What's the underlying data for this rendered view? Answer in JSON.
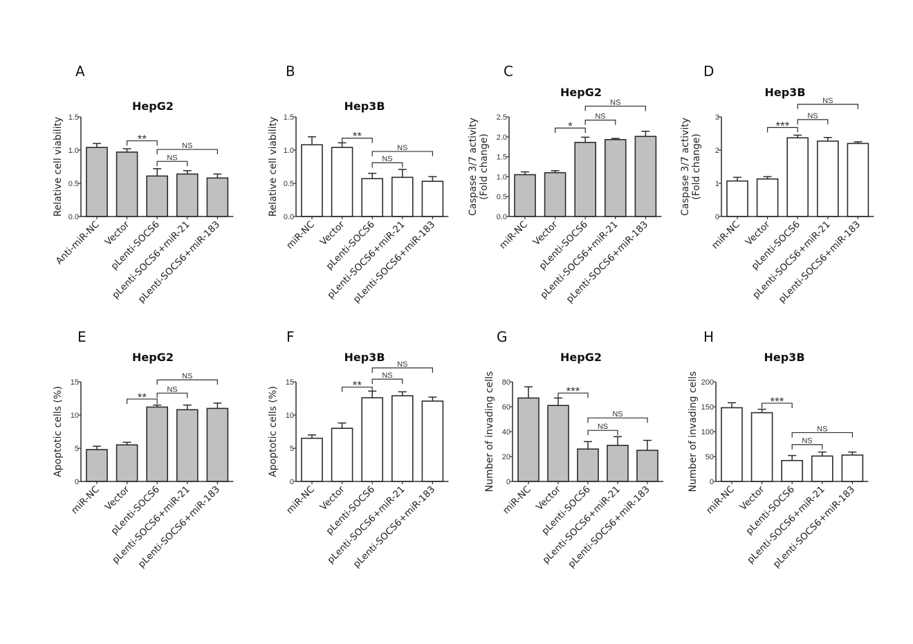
{
  "colors": {
    "gray_bar": "#c0c0c3",
    "white_bar": "#ffffff",
    "stroke": "#2a2a2a"
  },
  "chart_data": [
    {
      "id": "A",
      "type": "bar",
      "panel_label": "A",
      "title": "HepG2",
      "ylabel": "Relative cell viability",
      "ylim": [
        0,
        1.5
      ],
      "yticks": [
        "0.0",
        "0.5",
        "1.0",
        "1.5"
      ],
      "ytick_values": [
        0,
        0.5,
        1.0,
        1.5
      ],
      "categories": [
        "Anti-miR-NC",
        "Vector",
        "pLenti-SOCS6",
        "pLenti-SOCS6+miR-21",
        "pLenti-SOCS6+miR-183"
      ],
      "values": [
        1.04,
        0.97,
        0.61,
        0.64,
        0.58
      ],
      "errors": [
        0.06,
        0.05,
        0.11,
        0.05,
        0.06
      ],
      "fill": "gray",
      "brackets": [
        {
          "from": 1,
          "to": 2,
          "text": "**",
          "level": 1.14
        },
        {
          "from": 2,
          "to": 3,
          "text": "NS",
          "level": 0.83
        },
        {
          "from": 2,
          "to": 4,
          "text": "NS",
          "level": 1.01
        }
      ]
    },
    {
      "id": "B",
      "type": "bar",
      "panel_label": "B",
      "title": "Hep3B",
      "ylabel": "Relative cell viability",
      "ylim": [
        0,
        1.5
      ],
      "yticks": [
        "0.0",
        "0.5",
        "1.0",
        "1.5"
      ],
      "ytick_values": [
        0,
        0.5,
        1.0,
        1.5
      ],
      "categories": [
        "miR-NC",
        "Vector",
        "pLenti-SOCS6",
        "pLenti-SOCS6+miR-21",
        "pLenti-SOCS6+miR-183"
      ],
      "values": [
        1.08,
        1.04,
        0.57,
        0.59,
        0.53
      ],
      "errors": [
        0.12,
        0.07,
        0.08,
        0.12,
        0.07
      ],
      "fill": "white",
      "brackets": [
        {
          "from": 1,
          "to": 2,
          "text": "**",
          "level": 1.18
        },
        {
          "from": 2,
          "to": 3,
          "text": "NS",
          "level": 0.81
        },
        {
          "from": 2,
          "to": 4,
          "text": "NS",
          "level": 0.98
        }
      ]
    },
    {
      "id": "C",
      "type": "bar",
      "panel_label": "C",
      "title": "HepG2",
      "ylabel": "Caspase 3/7 activity",
      "ylabel2": "(Fold change)",
      "ylim": [
        0,
        2.5
      ],
      "yticks": [
        "0.0",
        "0.5",
        "1.0",
        "1.5",
        "2.0",
        "2.5"
      ],
      "ytick_values": [
        0,
        0.5,
        1.0,
        1.5,
        2.0,
        2.5
      ],
      "categories": [
        "miR-NC",
        "Vector",
        "pLenti-SOCS6",
        "pLenti-SOCS6+miR-21",
        "pLenti-SOCS6+miR-183"
      ],
      "values": [
        1.05,
        1.1,
        1.86,
        1.93,
        2.01
      ],
      "errors": [
        0.07,
        0.05,
        0.13,
        0.03,
        0.13
      ],
      "fill": "gray",
      "brackets": [
        {
          "from": 1,
          "to": 2,
          "text": "*",
          "level": 2.22
        },
        {
          "from": 2,
          "to": 3,
          "text": "NS",
          "level": 2.42
        },
        {
          "from": 2,
          "to": 4,
          "text": "NS",
          "level": 2.77
        }
      ]
    },
    {
      "id": "D",
      "type": "bar",
      "panel_label": "D",
      "title": "Hep3B",
      "ylabel": "Caspase 3/7 activity",
      "ylabel2": "(Fold change)",
      "ylim": [
        0,
        3
      ],
      "yticks": [
        "0",
        "1",
        "2",
        "3"
      ],
      "ytick_values": [
        0,
        1,
        2,
        3
      ],
      "categories": [
        "miR-NC",
        "Vector",
        "pLenti-SOCS6",
        "pLenti-SOCS6+miR-21",
        "pLenti-SOCS6+miR-183"
      ],
      "values": [
        1.07,
        1.13,
        2.37,
        2.27,
        2.2
      ],
      "errors": [
        0.11,
        0.07,
        0.08,
        0.11,
        0.05
      ],
      "fill": "white",
      "brackets": [
        {
          "from": 1,
          "to": 2,
          "text": "***",
          "level": 2.68
        },
        {
          "from": 2,
          "to": 3,
          "text": "NS",
          "level": 2.92
        },
        {
          "from": 2,
          "to": 4,
          "text": "NS",
          "level": 3.38
        }
      ]
    },
    {
      "id": "E",
      "type": "bar",
      "panel_label": "E",
      "title": "HepG2",
      "ylabel": "Apoptotic cells (%)",
      "ylim": [
        0,
        15
      ],
      "yticks": [
        "0",
        "5",
        "10",
        "15"
      ],
      "ytick_values": [
        0,
        5,
        10,
        15
      ],
      "categories": [
        "miR-NC",
        "Vector",
        "pLenti-SOCS6",
        "pLenti-SOCS6+miR-21",
        "pLenti-SOCS6+miR-183"
      ],
      "values": [
        4.8,
        5.5,
        11.2,
        10.8,
        11.0
      ],
      "errors": [
        0.5,
        0.4,
        0.3,
        0.7,
        0.8
      ],
      "fill": "gray",
      "brackets": [
        {
          "from": 1,
          "to": 2,
          "text": "**",
          "level": 12.4
        },
        {
          "from": 2,
          "to": 3,
          "text": "NS",
          "level": 13.3
        },
        {
          "from": 2,
          "to": 4,
          "text": "NS",
          "level": 15.3
        }
      ]
    },
    {
      "id": "F",
      "type": "bar",
      "panel_label": "F",
      "title": "Hep3B",
      "ylabel": "Apoptotic cells (%)",
      "ylim": [
        0,
        15
      ],
      "yticks": [
        "0",
        "5",
        "10",
        "15"
      ],
      "ytick_values": [
        0,
        5,
        10,
        15
      ],
      "categories": [
        "miR-NC",
        "Vector",
        "pLenti-SOCS6",
        "pLenti-SOCS6+miR-21",
        "pLenti-SOCS6+miR-183"
      ],
      "values": [
        6.5,
        8.0,
        12.6,
        12.9,
        12.1
      ],
      "errors": [
        0.5,
        0.8,
        1.0,
        0.6,
        0.6
      ],
      "fill": "white",
      "brackets": [
        {
          "from": 1,
          "to": 2,
          "text": "**",
          "level": 14.2
        },
        {
          "from": 2,
          "to": 3,
          "text": "NS",
          "level": 15.4
        },
        {
          "from": 2,
          "to": 4,
          "text": "NS",
          "level": 17.1
        }
      ]
    },
    {
      "id": "G",
      "type": "bar",
      "panel_label": "G",
      "title": "HepG2",
      "ylabel": "Number of invading cells",
      "ylim": [
        0,
        80
      ],
      "yticks": [
        "0",
        "20",
        "40",
        "60",
        "80"
      ],
      "ytick_values": [
        0,
        20,
        40,
        60,
        80
      ],
      "categories": [
        "miR-NC",
        "Vector",
        "pLenti-SOCS6",
        "pLenti-SOCS6+miR-21",
        "pLenti-SOCS6+miR-183"
      ],
      "values": [
        67,
        61,
        26,
        29,
        25
      ],
      "errors": [
        9,
        6,
        6,
        7,
        8
      ],
      "fill": "gray",
      "brackets": [
        {
          "from": 1,
          "to": 2,
          "text": "***",
          "level": 71
        },
        {
          "from": 2,
          "to": 3,
          "text": "NS",
          "level": 41
        },
        {
          "from": 2,
          "to": 4,
          "text": "NS",
          "level": 51
        }
      ]
    },
    {
      "id": "H",
      "type": "bar",
      "panel_label": "H",
      "title": "Hep3B",
      "ylabel": "Number of invading cells",
      "ylim": [
        0,
        200
      ],
      "yticks": [
        "0",
        "50",
        "100",
        "150",
        "200"
      ],
      "ytick_values": [
        0,
        50,
        100,
        150,
        200
      ],
      "categories": [
        "miR-NC",
        "Vector",
        "pLenti-SOCS6",
        "pLenti-SOCS6+miR-21",
        "pLenti-SOCS6+miR-183"
      ],
      "values": [
        148,
        138,
        42,
        51,
        53
      ],
      "errors": [
        10,
        7,
        10,
        8,
        6
      ],
      "fill": "white",
      "brackets": [
        {
          "from": 1,
          "to": 2,
          "text": "***",
          "level": 157
        },
        {
          "from": 2,
          "to": 3,
          "text": "NS",
          "level": 74
        },
        {
          "from": 2,
          "to": 4,
          "text": "NS",
          "level": 98
        }
      ]
    }
  ]
}
